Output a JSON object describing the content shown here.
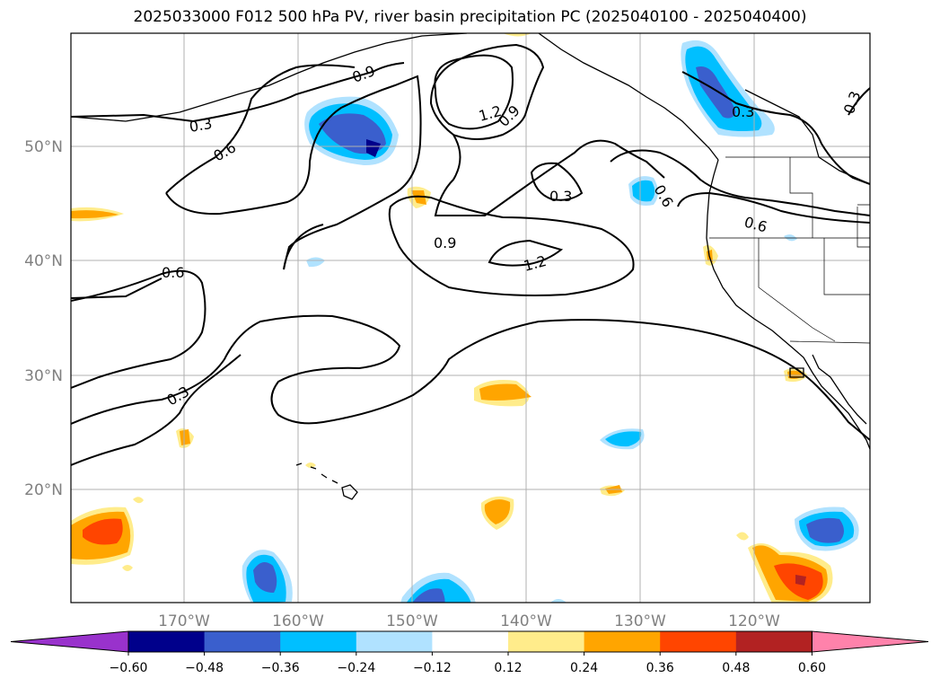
{
  "title": "2025033000 F012 500 hPa PV, river basin precipitation PC (2025040100 - 2025040400)",
  "lat_labels": [
    "50°N",
    "40°N",
    "30°N",
    "20°N"
  ],
  "lon_labels": [
    "170°W",
    "160°W",
    "150°W",
    "140°W",
    "130°W",
    "120°W"
  ],
  "contour_labels": [
    "0.9",
    "0.3",
    "0.6",
    "1.2",
    "0.9",
    "0.3",
    "0.6",
    "0.9",
    "1.2",
    "0.6",
    "0.3",
    "0.3",
    "0.6",
    "0.3"
  ],
  "colorbar": {
    "ticks": [
      "−0.60",
      "−0.48",
      "−0.36",
      "−0.24",
      "−0.12",
      "0.12",
      "0.24",
      "0.36",
      "0.48",
      "0.60"
    ],
    "colors": [
      "#9932cc",
      "#00008b",
      "#3a5fcd",
      "#00bfff",
      "#b0e2ff",
      "#ffffff",
      "#ffec8b",
      "#ffa500",
      "#ff4500",
      "#b22222",
      "#ff82ab"
    ]
  },
  "chart_data": {
    "type": "map-contour",
    "title": "2025033000 F012 500 hPa PV, river basin precipitation PC (2025040100 - 2025040400)",
    "contour_levels": [
      0.3,
      0.6,
      0.9,
      1.2
    ],
    "fill_levels": [
      -0.6,
      -0.48,
      -0.36,
      -0.24,
      -0.12,
      0.12,
      0.24,
      0.36,
      0.48,
      0.6
    ],
    "lat_ticks": [
      50,
      40,
      30,
      20
    ],
    "lon_ticks": [
      -170,
      -160,
      -150,
      -140,
      -130,
      -120
    ],
    "grid": true
  }
}
